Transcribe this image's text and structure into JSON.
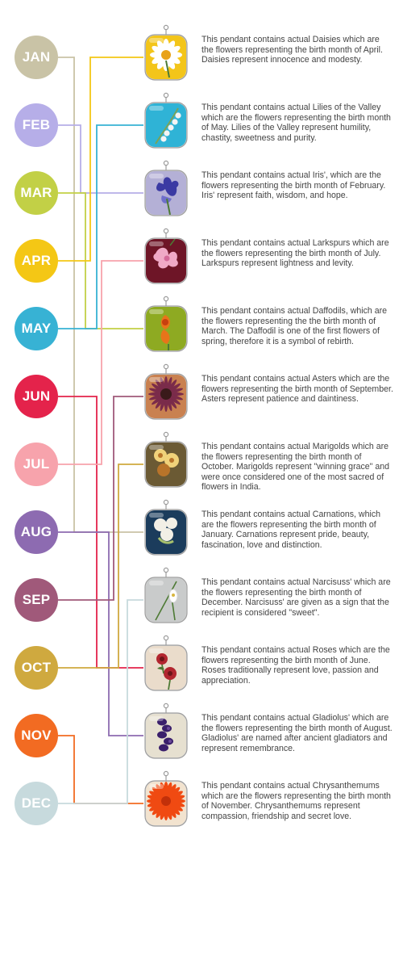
{
  "months": [
    {
      "label": "JAN",
      "color": "#c9c3a6"
    },
    {
      "label": "FEB",
      "color": "#b6aee8"
    },
    {
      "label": "MAR",
      "color": "#c2d046"
    },
    {
      "label": "APR",
      "color": "#f4c715"
    },
    {
      "label": "MAY",
      "color": "#37b2d4"
    },
    {
      "label": "JUN",
      "color": "#e4234b"
    },
    {
      "label": "JUL",
      "color": "#f7a3ac"
    },
    {
      "label": "AUG",
      "color": "#8d6bb1"
    },
    {
      "label": "SEP",
      "color": "#a0597a"
    },
    {
      "label": "OCT",
      "color": "#cfa93f"
    },
    {
      "label": "NOV",
      "color": "#f26b22"
    },
    {
      "label": "DEC",
      "color": "#c7dadd"
    }
  ],
  "pendants": [
    {
      "flower": "daisy",
      "month": "APR",
      "bg": "#f3c51a",
      "petal": "#ffffff",
      "center": "#e8a21a",
      "text": "This pendant contains actual Daisies which are the flowers representing the birth month of April.  Daisies represent innocence and modesty."
    },
    {
      "flower": "lily of the valley",
      "month": "MAY",
      "bg": "#2fb3d6",
      "petal": "#f4f4f4",
      "center": "#7aa35a",
      "text": "This pendant contains actual Lilies  of the Valley  which are the flowers representing the birth month of May.  Lilies of the Valley represent humility, chastity, sweetness and purity."
    },
    {
      "flower": "iris",
      "month": "FEB",
      "bg": "#b4b0d6",
      "petal": "#3b3aa3",
      "center": "#6f6fcb",
      "text": "This pendant contains actual Iris', which are the flowers representing the birth month of February. Iris' represent faith, wisdom, and hope."
    },
    {
      "flower": "larkspur",
      "month": "JUL",
      "bg": "#6e1527",
      "petal": "#f0a9c6",
      "center": "#d46a99",
      "text": "This pendant contains actual Larkspurs which are the flowers representing the birth month of July.  Larkspurs represent lightness and levity."
    },
    {
      "flower": "daffodil",
      "month": "MAR",
      "bg": "#8eaa22",
      "petal": "#e8741a",
      "center": "#c7400f",
      "text": "This pendant contains actual Daffodils, which are the flowers representing the the birth month of March. The Daffodil is one of the first flowers of spring, therefore it is a symbol of rebirth."
    },
    {
      "flower": "aster",
      "month": "SEP",
      "bg": "#c98150",
      "petal": "#7a2b4a",
      "center": "#3a1a1a",
      "text": "This pendant contains actual Asters which are the flowers representing the birth month of September.  Asters represent patience and daintiness."
    },
    {
      "flower": "marigold",
      "month": "OCT",
      "bg": "#6b5a34",
      "petal": "#f0d27a",
      "center": "#b8742a",
      "text": "This pendant contains actual Marigolds which are the flowers representing the birth month of October.  Marigolds represent \"winning grace\" and were once considered one of the most sacred of flowers in India."
    },
    {
      "flower": "carnation",
      "month": "JAN",
      "bg": "#1b3c5c",
      "petal": "#f2efe6",
      "center": "#a7c06d",
      "text": "This pendant contains actual Carnations, which are the flowers representing the birth month of January. Carnations represent pride, beauty, fascination, love and distinction."
    },
    {
      "flower": "narcissus",
      "month": "DEC",
      "bg": "#c9cbcb",
      "petal": "#ffffff",
      "center": "#d8b640",
      "text": "This pendant contains actual Narcisuss' which are the flowers representing the birth month of December.  Narcisuss' are given as a sign that the recipient is considered \"sweet\"."
    },
    {
      "flower": "rose",
      "month": "JUN",
      "bg": "#eadccb",
      "petal": "#b2262f",
      "center": "#6c1418",
      "text": "This pendant contains actual Roses which are the flowers representing the birth month of June.  Roses traditionally represent love, passion and appreciation."
    },
    {
      "flower": "gladiolus",
      "month": "AUG",
      "bg": "#e6e0d0",
      "petal": "#3a1f6b",
      "center": "#6b4a9a",
      "text": "This pendant contains actual Gladiolus' which are the flowers representing the birth month of August.  Gladiolus' are named after ancient gladiators and represent remembrance."
    },
    {
      "flower": "chrysanthemum",
      "month": "NOV",
      "bg": "#f2e3cf",
      "petal": "#f04a12",
      "center": "#c2300a",
      "text": "This pendant contains actual Chrysanthemums which are the flowers representing the birth month of November.  Chrysanthemums represent compassion, friendship and secret love."
    }
  ],
  "connectors": [
    {
      "month": "JAN",
      "pendant": 8
    },
    {
      "month": "FEB",
      "pendant": 3
    },
    {
      "month": "MAR",
      "pendant": 5
    },
    {
      "month": "APR",
      "pendant": 1
    },
    {
      "month": "MAY",
      "pendant": 2
    },
    {
      "month": "JUN",
      "pendant": 10
    },
    {
      "month": "JUL",
      "pendant": 4
    },
    {
      "month": "AUG",
      "pendant": 11
    },
    {
      "month": "SEP",
      "pendant": 6
    },
    {
      "month": "OCT",
      "pendant": 7
    },
    {
      "month": "NOV",
      "pendant": 12
    },
    {
      "month": "DEC",
      "pendant": 9
    }
  ]
}
